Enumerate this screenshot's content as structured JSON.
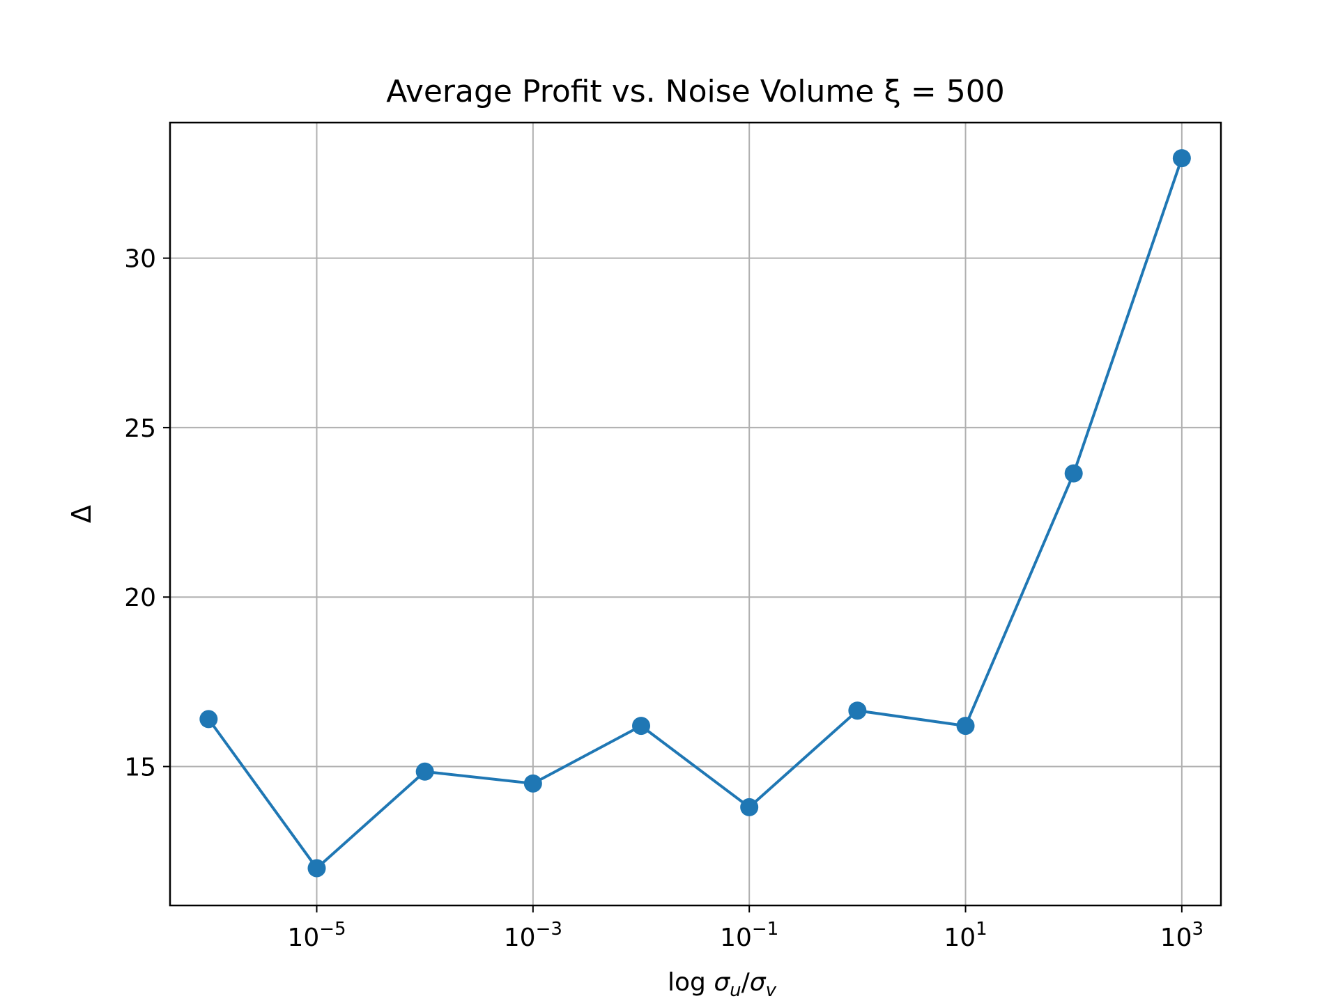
{
  "chart_data": {
    "type": "line",
    "title": "Average Profit vs. Noise Volume ξ  = 500",
    "xlabel": "log σu/σv",
    "ylabel": "Δ",
    "x_scale": "log",
    "x": [
      1e-06,
      1e-05,
      0.0001,
      0.001,
      0.01,
      0.1,
      1,
      10,
      100,
      1000
    ],
    "series": [
      {
        "values": [
          16.4,
          12.0,
          14.85,
          14.5,
          16.2,
          13.8,
          16.65,
          16.2,
          23.65,
          32.95
        ]
      }
    ],
    "xlim": [
      4.4e-07,
      2300
    ],
    "ylim": [
      10.9,
      34.0
    ],
    "xticks": [
      {
        "value": 1e-05,
        "base": "10",
        "exp": "−5"
      },
      {
        "value": 0.001,
        "base": "10",
        "exp": "−3"
      },
      {
        "value": 0.1,
        "base": "10",
        "exp": "−1"
      },
      {
        "value": 10,
        "base": "10",
        "exp": "1"
      },
      {
        "value": 1000,
        "base": "10",
        "exp": "3"
      }
    ],
    "yticks": [
      15,
      20,
      25,
      30
    ],
    "grid": true,
    "marker": "circle",
    "color": "#1f77b4"
  }
}
